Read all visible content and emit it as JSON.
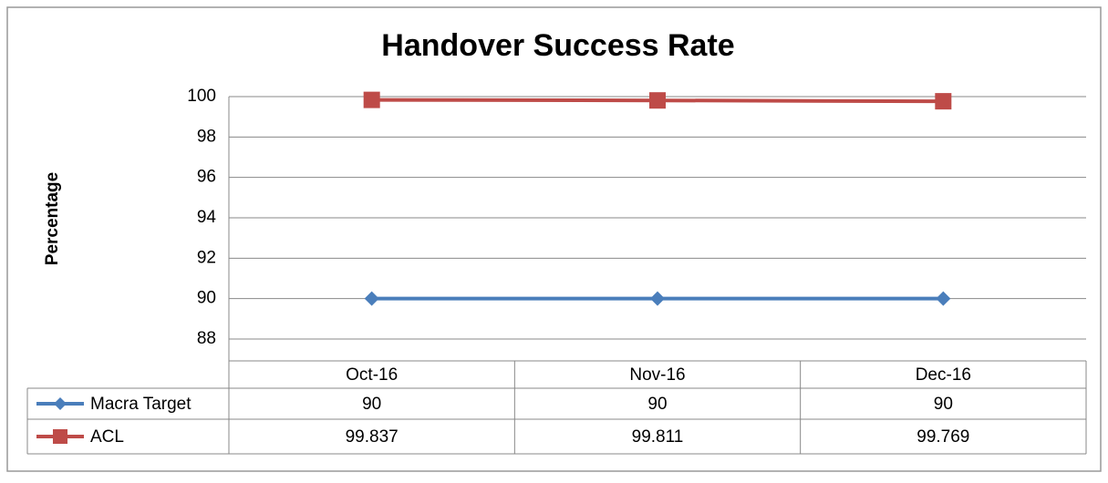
{
  "chart_data": {
    "type": "line",
    "title": "Handover Success Rate",
    "y_label": "Percentage",
    "categories": [
      "Oct-16",
      "Nov-16",
      "Dec-16"
    ],
    "series": [
      {
        "name": "Macra Target",
        "color": "#4a7ebb",
        "marker": "diamond",
        "values": [
          90,
          90,
          90
        ]
      },
      {
        "name": "ACL",
        "color": "#be4b48",
        "marker": "square",
        "values": [
          99.837,
          99.811,
          99.769
        ]
      }
    ],
    "ylim": [
      88,
      100
    ],
    "yticks": [
      88,
      90,
      92,
      94,
      96,
      98,
      100
    ],
    "grid": true,
    "data_table": true
  }
}
